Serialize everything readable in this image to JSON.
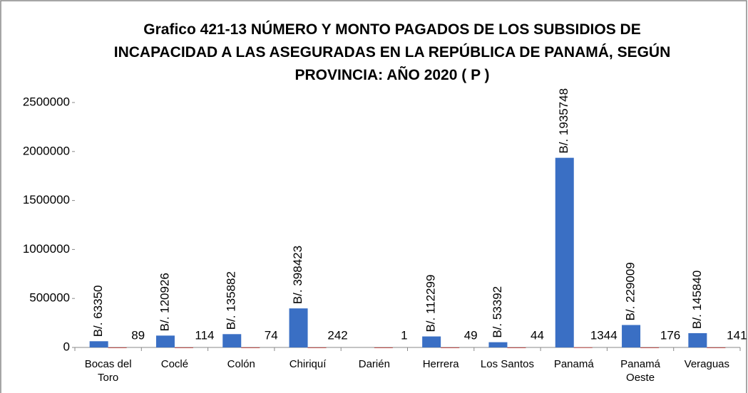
{
  "chart_data": {
    "type": "bar",
    "title": "Grafico 421-13 NÚMERO Y MONTO PAGADOS DE LOS SUBSIDIOS DE INCAPACIDAD A LAS ASEGURADAS  EN LA REPÚBLICA DE PANAMÁ, SEGÚN PROVINCIA: AÑO 2020 ( P )",
    "categories": [
      "Bocas del Toro",
      "Coclé",
      "Colón",
      "Chiriquí",
      "Darién",
      "Herrera",
      "Los Santos",
      "Panamá",
      "Panamá Oeste",
      "Veraguas"
    ],
    "series": [
      {
        "color": "#3a6fc4",
        "values": [
          63350,
          120926,
          135882,
          398423,
          null,
          112299,
          53392,
          1935748,
          229009,
          145840
        ],
        "value_labels": [
          "B/. 63350",
          "B/. 120926",
          "B/. 135882",
          "B/. 398423",
          null,
          "B/. 112299",
          "B/. 53392",
          "B/. 1935748",
          "B/. 229009",
          "B/. 145840"
        ]
      },
      {
        "color": "#c0504d",
        "values": [
          89,
          114,
          74,
          242,
          1,
          49,
          44,
          1344,
          176,
          141
        ]
      }
    ],
    "ylim": [
      0,
      2500000
    ],
    "yticks": [
      0,
      500000,
      1000000,
      1500000,
      2000000,
      2500000
    ],
    "grid": false
  }
}
